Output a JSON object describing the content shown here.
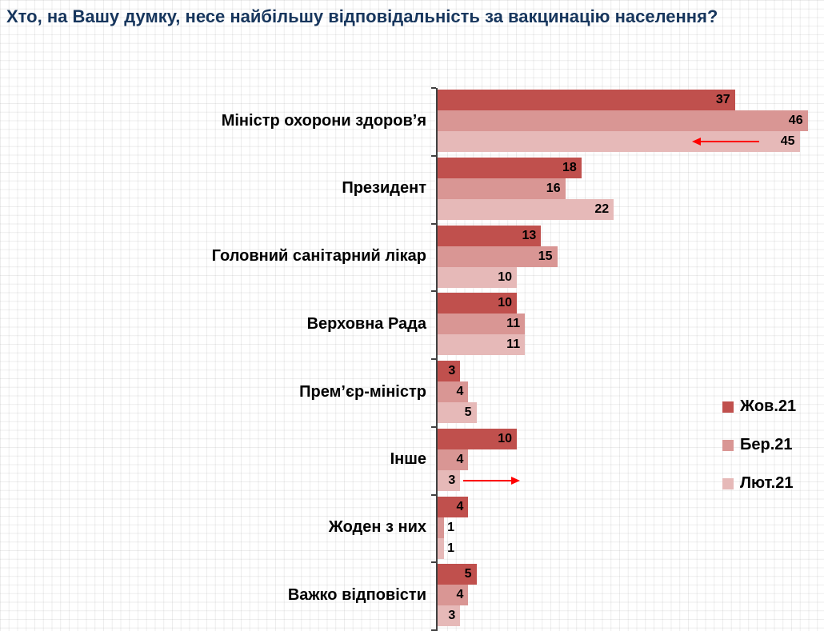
{
  "title": "Хто, на Вашу думку, несе найбільшу відповідальність за вакцинацію населення?",
  "colors": {
    "title": "#17365D",
    "arrow": "#FF0000",
    "axis": "#404040"
  },
  "chart_data": {
    "type": "bar",
    "orientation": "horizontal",
    "title": "Хто, на Вашу думку, несе найбільшу відповідальність за вакцинацію населення?",
    "categories": [
      "Міністр охорони здоров’я",
      "Президент",
      "Головний санітарний лікар",
      "Верховна Рада",
      "Прем’єр-міністр",
      "Інше",
      "Жоден з них",
      "Важко відповісти"
    ],
    "series": [
      {
        "name": "Жов.21",
        "color": "#C0504D",
        "values": [
          37,
          18,
          13,
          10,
          3,
          10,
          4,
          5
        ]
      },
      {
        "name": "Бер.21",
        "color": "#D99694",
        "values": [
          46,
          16,
          15,
          11,
          4,
          4,
          1,
          4
        ]
      },
      {
        "name": "Лют.21",
        "color": "#E6B9B8",
        "values": [
          45,
          22,
          10,
          11,
          5,
          3,
          1,
          3
        ]
      }
    ],
    "xlim": [
      0,
      46
    ],
    "grid": true,
    "legend_position": "right",
    "annotations": [
      {
        "category_index": 0,
        "series_index": 2,
        "direction": "left"
      },
      {
        "category_index": 5,
        "series_index": 2,
        "direction": "right"
      }
    ]
  }
}
